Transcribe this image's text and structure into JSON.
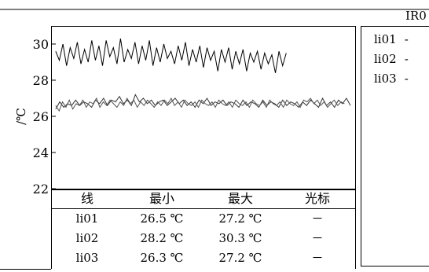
{
  "panel": {
    "title": "IR0"
  },
  "chart_data": {
    "type": "line",
    "title": "",
    "xlabel": "",
    "ylabel": "/℃",
    "ylim": [
      22,
      31
    ],
    "y_ticks": [
      "22",
      "24",
      "26",
      "28",
      "30"
    ],
    "y_tick_values": [
      22,
      24,
      26,
      28,
      30
    ],
    "grid": false,
    "legend_placement": "right",
    "series": [
      {
        "name": "li01",
        "color": "#333333",
        "values": [
          26.4,
          26.8,
          26.5,
          26.7,
          26.6,
          26.9,
          26.6,
          26.8,
          26.7,
          26.5,
          26.9,
          26.7,
          27.0,
          26.6,
          26.9,
          26.8,
          27.1,
          26.7,
          26.9,
          26.6,
          27.2,
          26.8,
          27.0,
          26.7,
          26.9,
          26.6,
          26.8,
          26.9,
          26.6,
          26.8,
          27.0,
          26.7,
          26.9,
          26.6,
          26.8,
          26.5,
          26.9,
          26.7,
          27.0,
          26.6,
          26.8,
          26.7,
          26.9,
          26.6,
          26.8,
          26.7,
          26.5,
          26.9,
          26.6,
          26.8,
          26.7,
          26.5,
          26.9,
          26.6,
          26.8,
          26.7,
          26.5,
          26.9,
          26.6,
          26.8,
          26.7,
          26.5,
          26.8,
          26.6,
          26.9,
          26.7,
          26.5,
          27.0,
          26.6,
          26.8,
          26.5,
          26.9,
          26.7,
          27.0,
          26.6
        ]
      },
      {
        "name": "li02",
        "color": "#000000",
        "values": [
          29.6,
          29.1,
          30.0,
          28.8,
          29.8,
          29.2,
          30.1,
          28.9,
          29.7,
          29.0,
          30.2,
          29.1,
          29.9,
          28.8,
          30.2,
          29.3,
          29.8,
          28.9,
          30.3,
          29.0,
          29.7,
          29.2,
          30.1,
          28.9,
          29.9,
          29.1,
          30.2,
          28.8,
          29.8,
          29.0,
          30.0,
          29.2,
          29.6,
          28.9,
          29.9,
          29.1,
          30.1,
          28.8,
          29.7,
          29.0,
          29.9,
          28.7,
          29.8,
          29.1,
          29.6,
          28.5,
          29.7,
          29.0,
          29.8,
          28.6,
          29.6,
          28.9,
          29.7,
          28.5,
          29.5,
          29.0,
          29.6,
          28.6,
          29.5,
          28.9,
          29.4,
          28.4,
          29.6,
          28.8,
          29.5
        ]
      },
      {
        "name": "li03",
        "color": "#555555",
        "values": [
          26.6,
          26.3,
          26.8,
          26.5,
          26.9,
          26.4,
          26.7,
          26.6,
          26.9,
          26.5,
          26.8,
          26.7,
          27.0,
          26.5,
          26.8,
          26.6,
          26.9,
          26.7,
          26.5,
          26.8,
          26.6,
          27.0,
          26.7,
          26.9,
          26.5,
          26.8,
          26.6,
          26.9,
          26.7,
          26.5,
          26.8,
          26.6,
          26.9,
          26.7,
          27.0,
          26.6,
          26.8,
          26.5,
          26.9,
          26.7,
          26.6,
          26.8,
          26.5,
          26.9,
          26.7,
          26.6,
          26.8,
          26.5,
          26.9,
          26.7,
          26.6,
          26.8,
          26.5,
          26.9,
          26.7,
          26.6,
          26.8,
          26.5,
          26.9,
          26.7,
          26.6,
          26.8,
          26.5,
          26.9,
          26.7,
          26.6,
          26.8,
          26.5,
          26.9,
          26.7,
          26.6,
          26.8,
          26.5,
          26.9,
          26.8,
          27.0,
          26.7,
          26.9,
          26.6,
          26.8,
          26.5,
          26.7,
          26.9,
          26.6,
          26.8,
          26.7
        ]
      }
    ]
  },
  "legend": {
    "items": [
      {
        "label": "li01",
        "value": "-"
      },
      {
        "label": "li02",
        "value": "-"
      },
      {
        "label": "li03",
        "value": "-"
      }
    ]
  },
  "stats_table": {
    "headers": [
      "线",
      "最小",
      "最大",
      "光标"
    ],
    "rows": [
      {
        "line": "li01",
        "min": "26.5 ℃",
        "max": "27.2 ℃",
        "cursor": "－"
      },
      {
        "line": "li02",
        "min": "28.2 ℃",
        "max": "30.3 ℃",
        "cursor": "－"
      },
      {
        "line": "li03",
        "min": "26.3 ℃",
        "max": "27.2 ℃",
        "cursor": "－"
      }
    ]
  }
}
